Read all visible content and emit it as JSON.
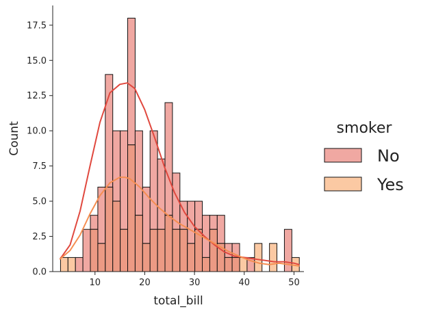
{
  "chart_data": {
    "type": "bar",
    "subtype": "stacked-histogram-with-kde",
    "xlabel": "total_bill",
    "ylabel": "Count",
    "xlim": [
      1.5,
      52.0
    ],
    "ylim": [
      0,
      18.9
    ],
    "x_ticks": [
      10,
      20,
      30,
      40,
      50
    ],
    "x_tick_labels": [
      "10",
      "20",
      "30",
      "40",
      "50"
    ],
    "y_ticks": [
      0,
      2.5,
      5,
      7.5,
      10,
      12.5,
      15,
      17.5
    ],
    "y_tick_labels": [
      "0.0",
      "2.5",
      "5.0",
      "7.5",
      "10.0",
      "12.5",
      "15.0",
      "17.5"
    ],
    "bin_start": 3.07,
    "bin_width": 1.5,
    "bin_count": 32,
    "legend": {
      "title": "smoker",
      "position": "right",
      "entries": [
        "No",
        "Yes"
      ]
    },
    "series": [
      {
        "name": "No",
        "color": "#f0a8a2",
        "kde_color": "#e0483e",
        "values": [
          0,
          0,
          1,
          3,
          1,
          4,
          8,
          5,
          7,
          9,
          6,
          4,
          7,
          5,
          8,
          4,
          2,
          3,
          2,
          3,
          1,
          2,
          1,
          1,
          0,
          1,
          0,
          0,
          0,
          0,
          3,
          0
        ]
      },
      {
        "name": "Yes",
        "color": "#fbc9a3",
        "kde_color": "#f58e51",
        "values": [
          1,
          1,
          0,
          0,
          3,
          2,
          6,
          5,
          3,
          9,
          4,
          2,
          3,
          3,
          4,
          3,
          3,
          2,
          3,
          1,
          3,
          2,
          1,
          1,
          1,
          0,
          2,
          0,
          2,
          0,
          0,
          1
        ]
      }
    ],
    "kde": [
      {
        "name": "No",
        "x": [
          3,
          5,
          7,
          9,
          11,
          13,
          15,
          16.5,
          18,
          20,
          22,
          24,
          26,
          28,
          30,
          32,
          34,
          36,
          38,
          40,
          42,
          44,
          46,
          48,
          50,
          51
        ],
        "y": [
          0.9,
          1.9,
          4.3,
          7.5,
          10.6,
          12.7,
          13.3,
          13.4,
          13.0,
          11.5,
          9.5,
          7.4,
          5.6,
          4.2,
          3.2,
          2.5,
          1.9,
          1.4,
          1.1,
          1.0,
          0.9,
          0.8,
          0.7,
          0.7,
          0.6,
          0.5
        ]
      },
      {
        "name": "Yes",
        "x": [
          3,
          5,
          7,
          9,
          11,
          13,
          15,
          16,
          17,
          19,
          21,
          23,
          25,
          27,
          29,
          31,
          33,
          35,
          37,
          39,
          41,
          43,
          45,
          47,
          49,
          51
        ],
        "y": [
          0.9,
          1.5,
          2.6,
          4.1,
          5.4,
          6.3,
          6.7,
          6.7,
          6.6,
          6.0,
          5.2,
          4.5,
          3.9,
          3.4,
          3.0,
          2.6,
          2.2,
          1.8,
          1.4,
          1.1,
          0.8,
          0.6,
          0.5,
          0.6,
          0.5,
          0.4
        ]
      }
    ]
  }
}
